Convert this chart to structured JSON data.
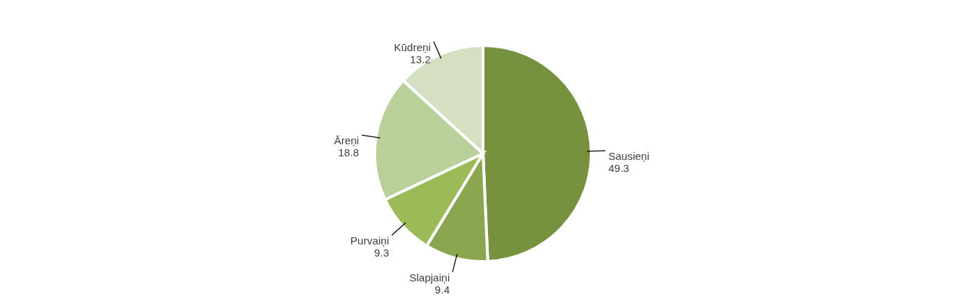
{
  "chart_data": {
    "type": "pie",
    "categories": [
      "Sausieņi",
      "Slapjaiņi",
      "Purvaiņi",
      "Āreņi",
      "Kūdreņi"
    ],
    "values": [
      49.3,
      9.4,
      9.3,
      18.8,
      13.2
    ],
    "colors": [
      "#77923f",
      "#8aa64e",
      "#9bbb59",
      "#bad09a",
      "#d4e0c1"
    ],
    "data_labels": true
  }
}
